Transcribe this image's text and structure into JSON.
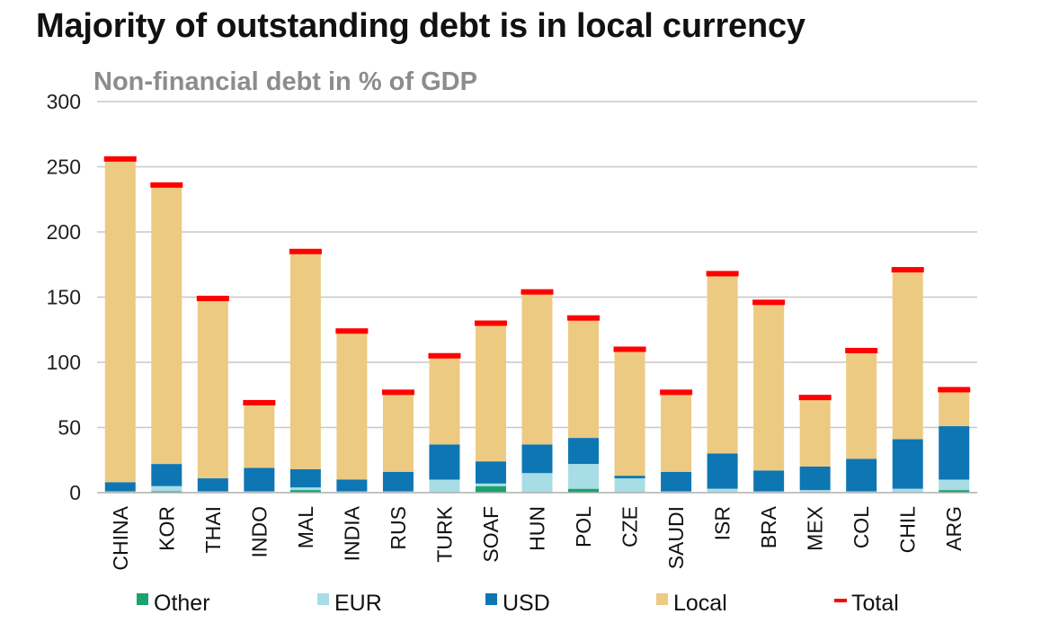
{
  "title": "Majority of outstanding debt is in local currency",
  "chart_data": {
    "type": "bar",
    "stacked": true,
    "subtitle": "Non-financial debt in % of GDP",
    "xlabel": "",
    "ylabel": "",
    "ylim": [
      0,
      300
    ],
    "yticks": [
      0,
      50,
      100,
      150,
      200,
      250,
      300
    ],
    "grid": true,
    "legend_position": "bottom",
    "categories": [
      "CHINA",
      "KOR",
      "THAI",
      "INDO",
      "MAL",
      "INDIA",
      "RUS",
      "TURK",
      "SOAF",
      "HUN",
      "POL",
      "CZE",
      "SAUDI",
      "ISR",
      "BRA",
      "MEX",
      "COL",
      "CHIL",
      "ARG"
    ],
    "series": [
      {
        "name": "Other",
        "color": "#1aa36f",
        "values": [
          0,
          1,
          0,
          0,
          2,
          0,
          0,
          0,
          5,
          0,
          3,
          0,
          0,
          0,
          0,
          0,
          0,
          0,
          2
        ]
      },
      {
        "name": "EUR",
        "color": "#a9dde6",
        "values": [
          1,
          4,
          1,
          1,
          2,
          1,
          1,
          10,
          2,
          15,
          19,
          11,
          1,
          3,
          1,
          2,
          1,
          3,
          8
        ]
      },
      {
        "name": "USD",
        "color": "#0e76b3",
        "values": [
          7,
          17,
          10,
          18,
          14,
          9,
          15,
          27,
          17,
          22,
          20,
          2,
          15,
          27,
          16,
          18,
          25,
          38,
          41
        ]
      },
      {
        "name": "Local",
        "color": "#ecca82",
        "values": [
          247,
          213,
          137,
          49,
          166,
          113,
          60,
          67,
          105,
          115,
          91,
          96,
          60,
          137,
          128,
          52,
          82,
          129,
          28
        ]
      }
    ],
    "total": {
      "name": "Total",
      "color": "#ff0000",
      "values": [
        256,
        236,
        149,
        69,
        185,
        124,
        77,
        105,
        130,
        154,
        134,
        110,
        77,
        168,
        146,
        73,
        109,
        171,
        79
      ]
    }
  }
}
